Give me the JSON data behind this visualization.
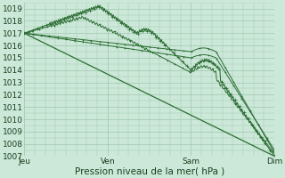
{
  "bg_color": "#cce8d8",
  "grid_color": "#9dc8b0",
  "line_color": "#2d6e35",
  "xlabel": "Pression niveau de la mer( hPa )",
  "xlabel_fontsize": 7.5,
  "tick_fontsize": 6.5,
  "ylim": [
    1007,
    1019.5
  ],
  "yticks": [
    1007,
    1008,
    1009,
    1010,
    1011,
    1012,
    1013,
    1014,
    1015,
    1016,
    1017,
    1018,
    1019
  ],
  "xtick_labels": [
    "Jeu",
    "Ven",
    "Sam",
    "Dim"
  ],
  "xtick_positions": [
    0,
    1,
    2,
    3
  ],
  "figsize": [
    3.2,
    2.0
  ],
  "dpi": 100
}
